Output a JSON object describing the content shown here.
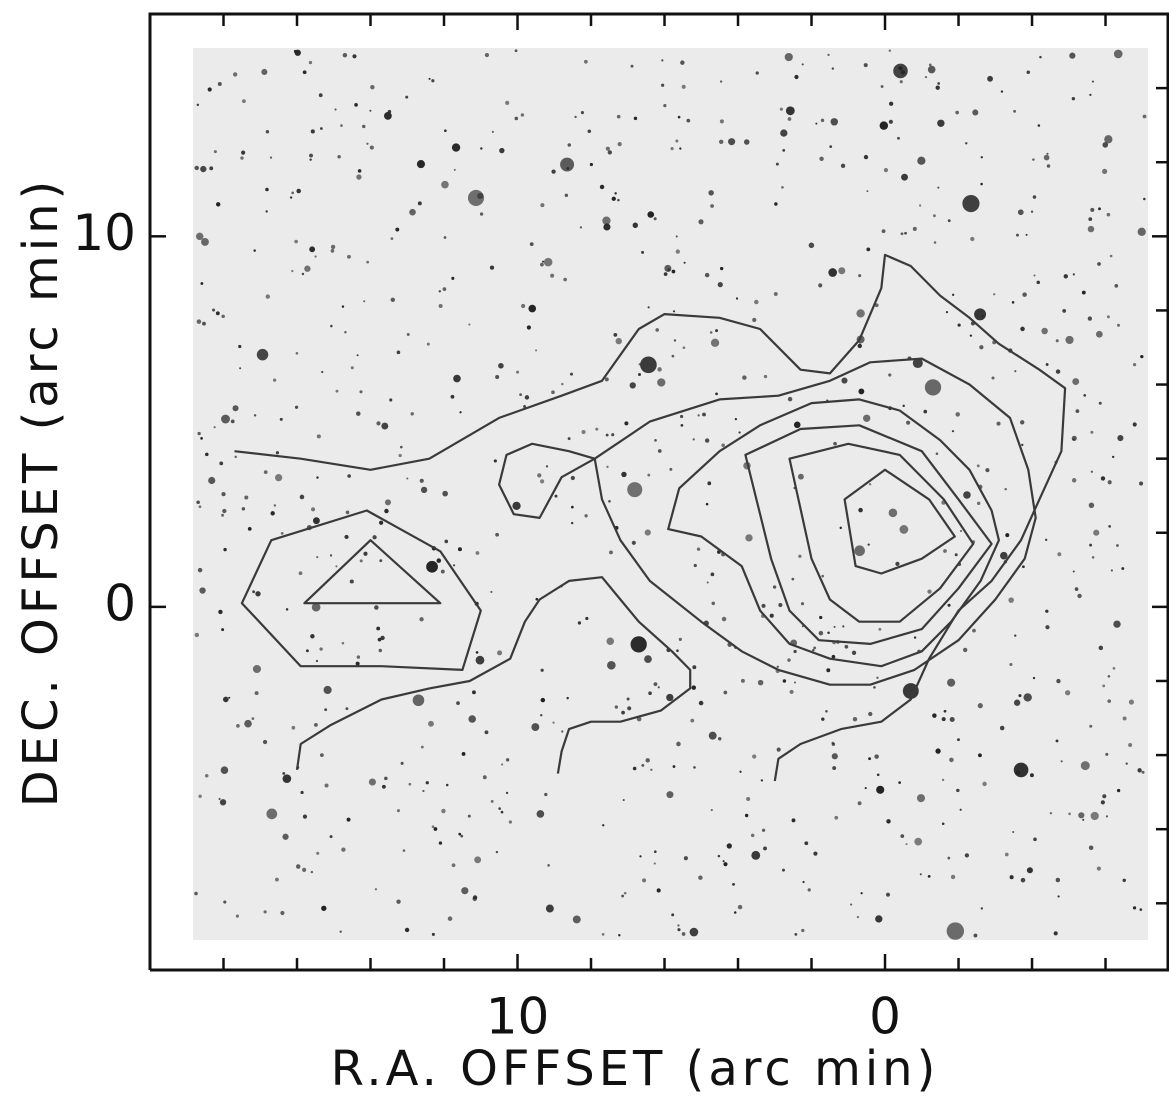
{
  "chart_data": {
    "type": "contour",
    "xlabel": "R.A. OFFSET (arc min)",
    "ylabel": "DEC. OFFSET (arc min)",
    "xlim": [
      20,
      -7.7
    ],
    "ylim": [
      -9.8,
      16
    ],
    "xticks": [
      10,
      0
    ],
    "yticks": [
      10,
      0
    ],
    "x_minor_ticks": [
      18,
      16,
      14,
      12,
      8,
      6,
      4,
      2,
      -2,
      -4,
      -6
    ],
    "y_minor_ticks": [
      14,
      12,
      8,
      6,
      4,
      2,
      -2,
      -4,
      -6,
      -8
    ],
    "color": "#3a3a3a",
    "contours": [
      {
        "closed": false,
        "x": [
          17.7,
          15.9,
          14.0,
          12.4,
          10.5,
          8.8,
          7.7,
          6.7,
          6.0,
          4.5,
          3.4,
          2.3,
          1.5,
          0.7,
          0.1,
          0.0,
          -0.7,
          -1.5,
          -2.3,
          -3.1,
          -4.2,
          -4.9,
          -4.8,
          -4.2,
          -3.7,
          -2.9,
          -2.0,
          -1.2,
          -0.7,
          0.1,
          1.2,
          2.3,
          2.9,
          3.0
        ],
        "y": [
          4.2,
          4.0,
          3.7,
          4.0,
          5.1,
          5.7,
          6.1,
          7.5,
          7.9,
          7.8,
          7.5,
          6.4,
          6.3,
          7.2,
          8.6,
          9.5,
          9.2,
          8.4,
          7.8,
          7.1,
          6.4,
          5.9,
          4.2,
          2.9,
          1.8,
          0.7,
          -0.1,
          -1.4,
          -2.5,
          -3.1,
          -3.3,
          -3.7,
          -4.1,
          -4.7
        ]
      },
      {
        "closed": false,
        "x": [
          16.0,
          15.9,
          15.1,
          13.7,
          12.4,
          11.3,
          10.2,
          9.8,
          9.4,
          8.6,
          7.7,
          7.2,
          6.7,
          5.8,
          5.3,
          5.3,
          6.1,
          7.2,
          8.0,
          8.6,
          8.8,
          8.9
        ],
        "y": [
          -4.4,
          -3.7,
          -3.2,
          -2.5,
          -2.2,
          -2.0,
          -1.4,
          -0.4,
          0.2,
          0.7,
          0.8,
          0.2,
          -0.4,
          -1.2,
          -1.7,
          -2.2,
          -2.8,
          -3.1,
          -3.1,
          -3.3,
          -3.9,
          -4.5
        ]
      },
      {
        "closed": true,
        "x": [
          17.5,
          16.7,
          14.1,
          12.1,
          11.0,
          11.5,
          13.7,
          15.9
        ],
        "y": [
          0.1,
          1.8,
          2.6,
          1.5,
          -0.1,
          -1.7,
          -1.6,
          -1.6
        ]
      },
      {
        "closed": true,
        "x": [
          15.8,
          14.0,
          12.1
        ],
        "y": [
          0.1,
          1.8,
          0.1
        ]
      },
      {
        "closed": true,
        "x": [
          7.9,
          8.8,
          9.4,
          10.1,
          10.5,
          10.3,
          9.6,
          8.6,
          7.9,
          6.4,
          4.5,
          2.9,
          1.5,
          0.4,
          -1.0,
          -2.3,
          -3.4,
          -3.9,
          -4.1,
          -3.8,
          -3.0,
          -2.0,
          -0.8,
          0.4,
          1.5,
          2.9,
          3.9,
          5.0,
          6.4,
          7.2,
          7.7
        ],
        "y": [
          4.0,
          3.5,
          2.4,
          2.5,
          3.3,
          4.1,
          4.4,
          4.2,
          4.0,
          5.0,
          5.6,
          5.7,
          6.1,
          6.6,
          6.7,
          6.0,
          5.1,
          3.7,
          2.4,
          1.3,
          0.2,
          -0.9,
          -1.7,
          -2.1,
          -2.1,
          -1.7,
          -1.2,
          -0.4,
          0.7,
          1.8,
          2.9
        ]
      },
      {
        "closed": true,
        "x": [
          5.9,
          5.6,
          4.5,
          3.4,
          2.0,
          0.7,
          -0.4,
          -1.5,
          -2.3,
          -2.9,
          -3.1,
          -2.6,
          -1.8,
          -1.0,
          0.1,
          1.5,
          2.6,
          3.4,
          3.9,
          5.0
        ],
        "y": [
          2.1,
          3.2,
          4.2,
          4.9,
          5.5,
          5.6,
          5.3,
          4.5,
          3.7,
          2.6,
          1.8,
          0.7,
          -0.4,
          -1.2,
          -1.6,
          -1.4,
          -1.0,
          -0.1,
          1.1,
          1.9
        ]
      },
      {
        "closed": true,
        "x": [
          3.8,
          2.3,
          0.7,
          -1.0,
          -2.0,
          -2.9,
          -2.0,
          -1.0,
          0.4,
          1.8,
          2.6,
          3.1
        ],
        "y": [
          4.1,
          4.8,
          4.9,
          4.2,
          2.9,
          1.7,
          0.5,
          -0.6,
          -1.0,
          -0.9,
          -0.1,
          1.3
        ]
      },
      {
        "closed": true,
        "x": [
          2.6,
          1.0,
          -0.4,
          -1.6,
          -2.4,
          -1.5,
          -0.4,
          0.7,
          1.5,
          2.0
        ],
        "y": [
          4.0,
          4.4,
          4.1,
          2.9,
          1.7,
          0.5,
          -0.4,
          -0.4,
          0.2,
          1.3
        ]
      },
      {
        "closed": true,
        "x": [
          1.1,
          0.0,
          -1.2,
          -1.9,
          -1.0,
          0.1,
          0.8
        ],
        "y": [
          2.9,
          3.7,
          2.9,
          1.9,
          1.3,
          0.9,
          1.1
        ]
      }
    ]
  }
}
